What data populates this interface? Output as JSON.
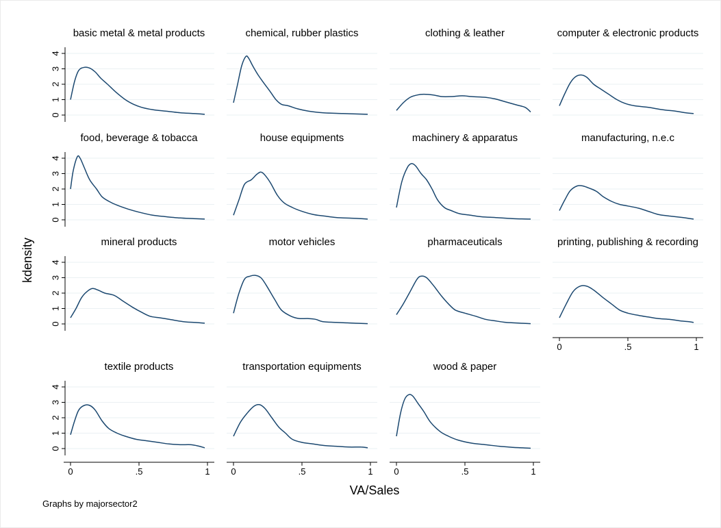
{
  "chart_data": {
    "type": "line",
    "xlabel": "VA/Sales",
    "ylabel": "kdensity",
    "note": "Graphs by majorsector2",
    "xlim": [
      0,
      1
    ],
    "ylim": [
      0,
      4.4
    ],
    "x_ticks": [
      "0",
      ".5",
      "1"
    ],
    "y_ticks": [
      "0",
      "1",
      "2",
      "3",
      "4"
    ],
    "grid": true,
    "line_color": "#1a476f",
    "panels": [
      {
        "title": "basic metal & metal products",
        "points": [
          [
            0.0,
            1.0
          ],
          [
            0.03,
            2.2
          ],
          [
            0.06,
            2.9
          ],
          [
            0.1,
            3.1
          ],
          [
            0.14,
            3.05
          ],
          [
            0.18,
            2.8
          ],
          [
            0.22,
            2.4
          ],
          [
            0.27,
            2.0
          ],
          [
            0.33,
            1.5
          ],
          [
            0.4,
            1.0
          ],
          [
            0.46,
            0.7
          ],
          [
            0.52,
            0.5
          ],
          [
            0.6,
            0.35
          ],
          [
            0.7,
            0.25
          ],
          [
            0.8,
            0.15
          ],
          [
            0.9,
            0.1
          ],
          [
            0.98,
            0.05
          ]
        ]
      },
      {
        "title": "chemical, rubber plastics",
        "points": [
          [
            0.0,
            0.8
          ],
          [
            0.03,
            2.0
          ],
          [
            0.06,
            3.2
          ],
          [
            0.09,
            3.8
          ],
          [
            0.11,
            3.7
          ],
          [
            0.14,
            3.2
          ],
          [
            0.18,
            2.6
          ],
          [
            0.22,
            2.1
          ],
          [
            0.27,
            1.5
          ],
          [
            0.31,
            1.0
          ],
          [
            0.35,
            0.7
          ],
          [
            0.4,
            0.6
          ],
          [
            0.47,
            0.4
          ],
          [
            0.55,
            0.25
          ],
          [
            0.65,
            0.15
          ],
          [
            0.8,
            0.1
          ],
          [
            0.98,
            0.05
          ]
        ]
      },
      {
        "title": "clothing & leather",
        "points": [
          [
            0.0,
            0.3
          ],
          [
            0.05,
            0.8
          ],
          [
            0.1,
            1.15
          ],
          [
            0.15,
            1.3
          ],
          [
            0.2,
            1.35
          ],
          [
            0.27,
            1.3
          ],
          [
            0.33,
            1.2
          ],
          [
            0.4,
            1.2
          ],
          [
            0.48,
            1.25
          ],
          [
            0.55,
            1.2
          ],
          [
            0.65,
            1.15
          ],
          [
            0.72,
            1.05
          ],
          [
            0.8,
            0.85
          ],
          [
            0.88,
            0.65
          ],
          [
            0.94,
            0.5
          ],
          [
            0.98,
            0.2
          ]
        ]
      },
      {
        "title": "computer & electronic products",
        "points": [
          [
            0.0,
            0.6
          ],
          [
            0.04,
            1.4
          ],
          [
            0.08,
            2.1
          ],
          [
            0.12,
            2.5
          ],
          [
            0.16,
            2.6
          ],
          [
            0.2,
            2.45
          ],
          [
            0.25,
            2.0
          ],
          [
            0.3,
            1.7
          ],
          [
            0.36,
            1.35
          ],
          [
            0.42,
            1.0
          ],
          [
            0.48,
            0.75
          ],
          [
            0.55,
            0.6
          ],
          [
            0.65,
            0.5
          ],
          [
            0.75,
            0.35
          ],
          [
            0.85,
            0.25
          ],
          [
            0.92,
            0.15
          ],
          [
            0.98,
            0.1
          ]
        ]
      },
      {
        "title": "food, beverage & tobacca",
        "points": [
          [
            0.0,
            2.0
          ],
          [
            0.02,
            3.2
          ],
          [
            0.05,
            4.1
          ],
          [
            0.07,
            4.0
          ],
          [
            0.1,
            3.4
          ],
          [
            0.14,
            2.6
          ],
          [
            0.19,
            2.0
          ],
          [
            0.23,
            1.5
          ],
          [
            0.28,
            1.2
          ],
          [
            0.34,
            0.95
          ],
          [
            0.42,
            0.7
          ],
          [
            0.5,
            0.5
          ],
          [
            0.6,
            0.3
          ],
          [
            0.7,
            0.2
          ],
          [
            0.8,
            0.12
          ],
          [
            0.9,
            0.08
          ],
          [
            0.98,
            0.05
          ]
        ]
      },
      {
        "title": "house equipments",
        "points": [
          [
            0.0,
            0.3
          ],
          [
            0.04,
            1.3
          ],
          [
            0.08,
            2.3
          ],
          [
            0.13,
            2.6
          ],
          [
            0.17,
            2.95
          ],
          [
            0.2,
            3.1
          ],
          [
            0.23,
            2.9
          ],
          [
            0.27,
            2.4
          ],
          [
            0.32,
            1.6
          ],
          [
            0.37,
            1.1
          ],
          [
            0.43,
            0.8
          ],
          [
            0.5,
            0.55
          ],
          [
            0.58,
            0.35
          ],
          [
            0.66,
            0.25
          ],
          [
            0.75,
            0.15
          ],
          [
            0.88,
            0.1
          ],
          [
            0.98,
            0.05
          ]
        ]
      },
      {
        "title": "machinery & apparatus",
        "points": [
          [
            0.0,
            0.8
          ],
          [
            0.04,
            2.5
          ],
          [
            0.08,
            3.4
          ],
          [
            0.11,
            3.65
          ],
          [
            0.14,
            3.5
          ],
          [
            0.18,
            3.0
          ],
          [
            0.22,
            2.6
          ],
          [
            0.26,
            2.0
          ],
          [
            0.3,
            1.3
          ],
          [
            0.35,
            0.8
          ],
          [
            0.4,
            0.6
          ],
          [
            0.46,
            0.4
          ],
          [
            0.54,
            0.3
          ],
          [
            0.62,
            0.2
          ],
          [
            0.72,
            0.15
          ],
          [
            0.85,
            0.08
          ],
          [
            0.98,
            0.05
          ]
        ]
      },
      {
        "title": "manufacturing, n.e.c",
        "points": [
          [
            0.0,
            0.6
          ],
          [
            0.04,
            1.3
          ],
          [
            0.08,
            1.9
          ],
          [
            0.13,
            2.2
          ],
          [
            0.17,
            2.2
          ],
          [
            0.22,
            2.05
          ],
          [
            0.27,
            1.85
          ],
          [
            0.32,
            1.5
          ],
          [
            0.38,
            1.2
          ],
          [
            0.44,
            1.0
          ],
          [
            0.5,
            0.9
          ],
          [
            0.58,
            0.75
          ],
          [
            0.65,
            0.55
          ],
          [
            0.72,
            0.35
          ],
          [
            0.8,
            0.25
          ],
          [
            0.9,
            0.15
          ],
          [
            0.98,
            0.05
          ]
        ]
      },
      {
        "title": "mineral products",
        "points": [
          [
            0.0,
            0.4
          ],
          [
            0.04,
            1.0
          ],
          [
            0.08,
            1.7
          ],
          [
            0.12,
            2.1
          ],
          [
            0.16,
            2.3
          ],
          [
            0.2,
            2.2
          ],
          [
            0.25,
            2.0
          ],
          [
            0.32,
            1.85
          ],
          [
            0.38,
            1.5
          ],
          [
            0.45,
            1.1
          ],
          [
            0.52,
            0.75
          ],
          [
            0.58,
            0.5
          ],
          [
            0.65,
            0.4
          ],
          [
            0.72,
            0.3
          ],
          [
            0.82,
            0.15
          ],
          [
            0.9,
            0.1
          ],
          [
            0.98,
            0.05
          ]
        ]
      },
      {
        "title": "motor vehicles",
        "points": [
          [
            0.0,
            0.7
          ],
          [
            0.04,
            2.0
          ],
          [
            0.08,
            2.9
          ],
          [
            0.12,
            3.1
          ],
          [
            0.16,
            3.15
          ],
          [
            0.2,
            3.0
          ],
          [
            0.24,
            2.5
          ],
          [
            0.3,
            1.6
          ],
          [
            0.35,
            0.9
          ],
          [
            0.42,
            0.5
          ],
          [
            0.48,
            0.35
          ],
          [
            0.54,
            0.35
          ],
          [
            0.6,
            0.3
          ],
          [
            0.65,
            0.15
          ],
          [
            0.75,
            0.1
          ],
          [
            0.88,
            0.05
          ],
          [
            0.98,
            0.02
          ]
        ]
      },
      {
        "title": "pharmaceuticals",
        "points": [
          [
            0.0,
            0.6
          ],
          [
            0.05,
            1.3
          ],
          [
            0.1,
            2.1
          ],
          [
            0.15,
            2.9
          ],
          [
            0.18,
            3.1
          ],
          [
            0.22,
            3.0
          ],
          [
            0.27,
            2.5
          ],
          [
            0.33,
            1.8
          ],
          [
            0.38,
            1.3
          ],
          [
            0.43,
            0.9
          ],
          [
            0.5,
            0.7
          ],
          [
            0.58,
            0.5
          ],
          [
            0.65,
            0.3
          ],
          [
            0.72,
            0.2
          ],
          [
            0.8,
            0.1
          ],
          [
            0.9,
            0.05
          ],
          [
            0.98,
            0.02
          ]
        ]
      },
      {
        "title": "printing, publishing & recording",
        "points": [
          [
            0.0,
            0.4
          ],
          [
            0.05,
            1.3
          ],
          [
            0.1,
            2.1
          ],
          [
            0.15,
            2.45
          ],
          [
            0.2,
            2.45
          ],
          [
            0.25,
            2.2
          ],
          [
            0.32,
            1.7
          ],
          [
            0.38,
            1.3
          ],
          [
            0.44,
            0.9
          ],
          [
            0.5,
            0.7
          ],
          [
            0.58,
            0.55
          ],
          [
            0.65,
            0.45
          ],
          [
            0.72,
            0.35
          ],
          [
            0.8,
            0.3
          ],
          [
            0.88,
            0.2
          ],
          [
            0.94,
            0.15
          ],
          [
            0.98,
            0.1
          ]
        ]
      },
      {
        "title": "textile products",
        "points": [
          [
            0.0,
            0.9
          ],
          [
            0.03,
            1.8
          ],
          [
            0.06,
            2.5
          ],
          [
            0.1,
            2.8
          ],
          [
            0.14,
            2.8
          ],
          [
            0.18,
            2.5
          ],
          [
            0.23,
            1.8
          ],
          [
            0.28,
            1.3
          ],
          [
            0.34,
            1.0
          ],
          [
            0.4,
            0.8
          ],
          [
            0.48,
            0.6
          ],
          [
            0.56,
            0.5
          ],
          [
            0.64,
            0.4
          ],
          [
            0.72,
            0.3
          ],
          [
            0.8,
            0.25
          ],
          [
            0.88,
            0.25
          ],
          [
            0.94,
            0.15
          ],
          [
            0.98,
            0.05
          ]
        ]
      },
      {
        "title": "transportation equipments",
        "points": [
          [
            0.0,
            0.8
          ],
          [
            0.05,
            1.7
          ],
          [
            0.1,
            2.3
          ],
          [
            0.15,
            2.75
          ],
          [
            0.19,
            2.85
          ],
          [
            0.23,
            2.6
          ],
          [
            0.28,
            2.0
          ],
          [
            0.33,
            1.4
          ],
          [
            0.38,
            1.0
          ],
          [
            0.43,
            0.6
          ],
          [
            0.5,
            0.4
          ],
          [
            0.58,
            0.3
          ],
          [
            0.66,
            0.2
          ],
          [
            0.75,
            0.15
          ],
          [
            0.85,
            0.1
          ],
          [
            0.93,
            0.1
          ],
          [
            0.98,
            0.05
          ]
        ]
      },
      {
        "title": "wood & paper",
        "points": [
          [
            0.0,
            0.8
          ],
          [
            0.03,
            2.3
          ],
          [
            0.06,
            3.2
          ],
          [
            0.09,
            3.5
          ],
          [
            0.12,
            3.4
          ],
          [
            0.16,
            2.9
          ],
          [
            0.2,
            2.4
          ],
          [
            0.25,
            1.7
          ],
          [
            0.32,
            1.1
          ],
          [
            0.38,
            0.8
          ],
          [
            0.45,
            0.55
          ],
          [
            0.55,
            0.35
          ],
          [
            0.65,
            0.25
          ],
          [
            0.75,
            0.15
          ],
          [
            0.85,
            0.08
          ],
          [
            0.92,
            0.05
          ],
          [
            0.98,
            0.02
          ]
        ]
      }
    ]
  }
}
